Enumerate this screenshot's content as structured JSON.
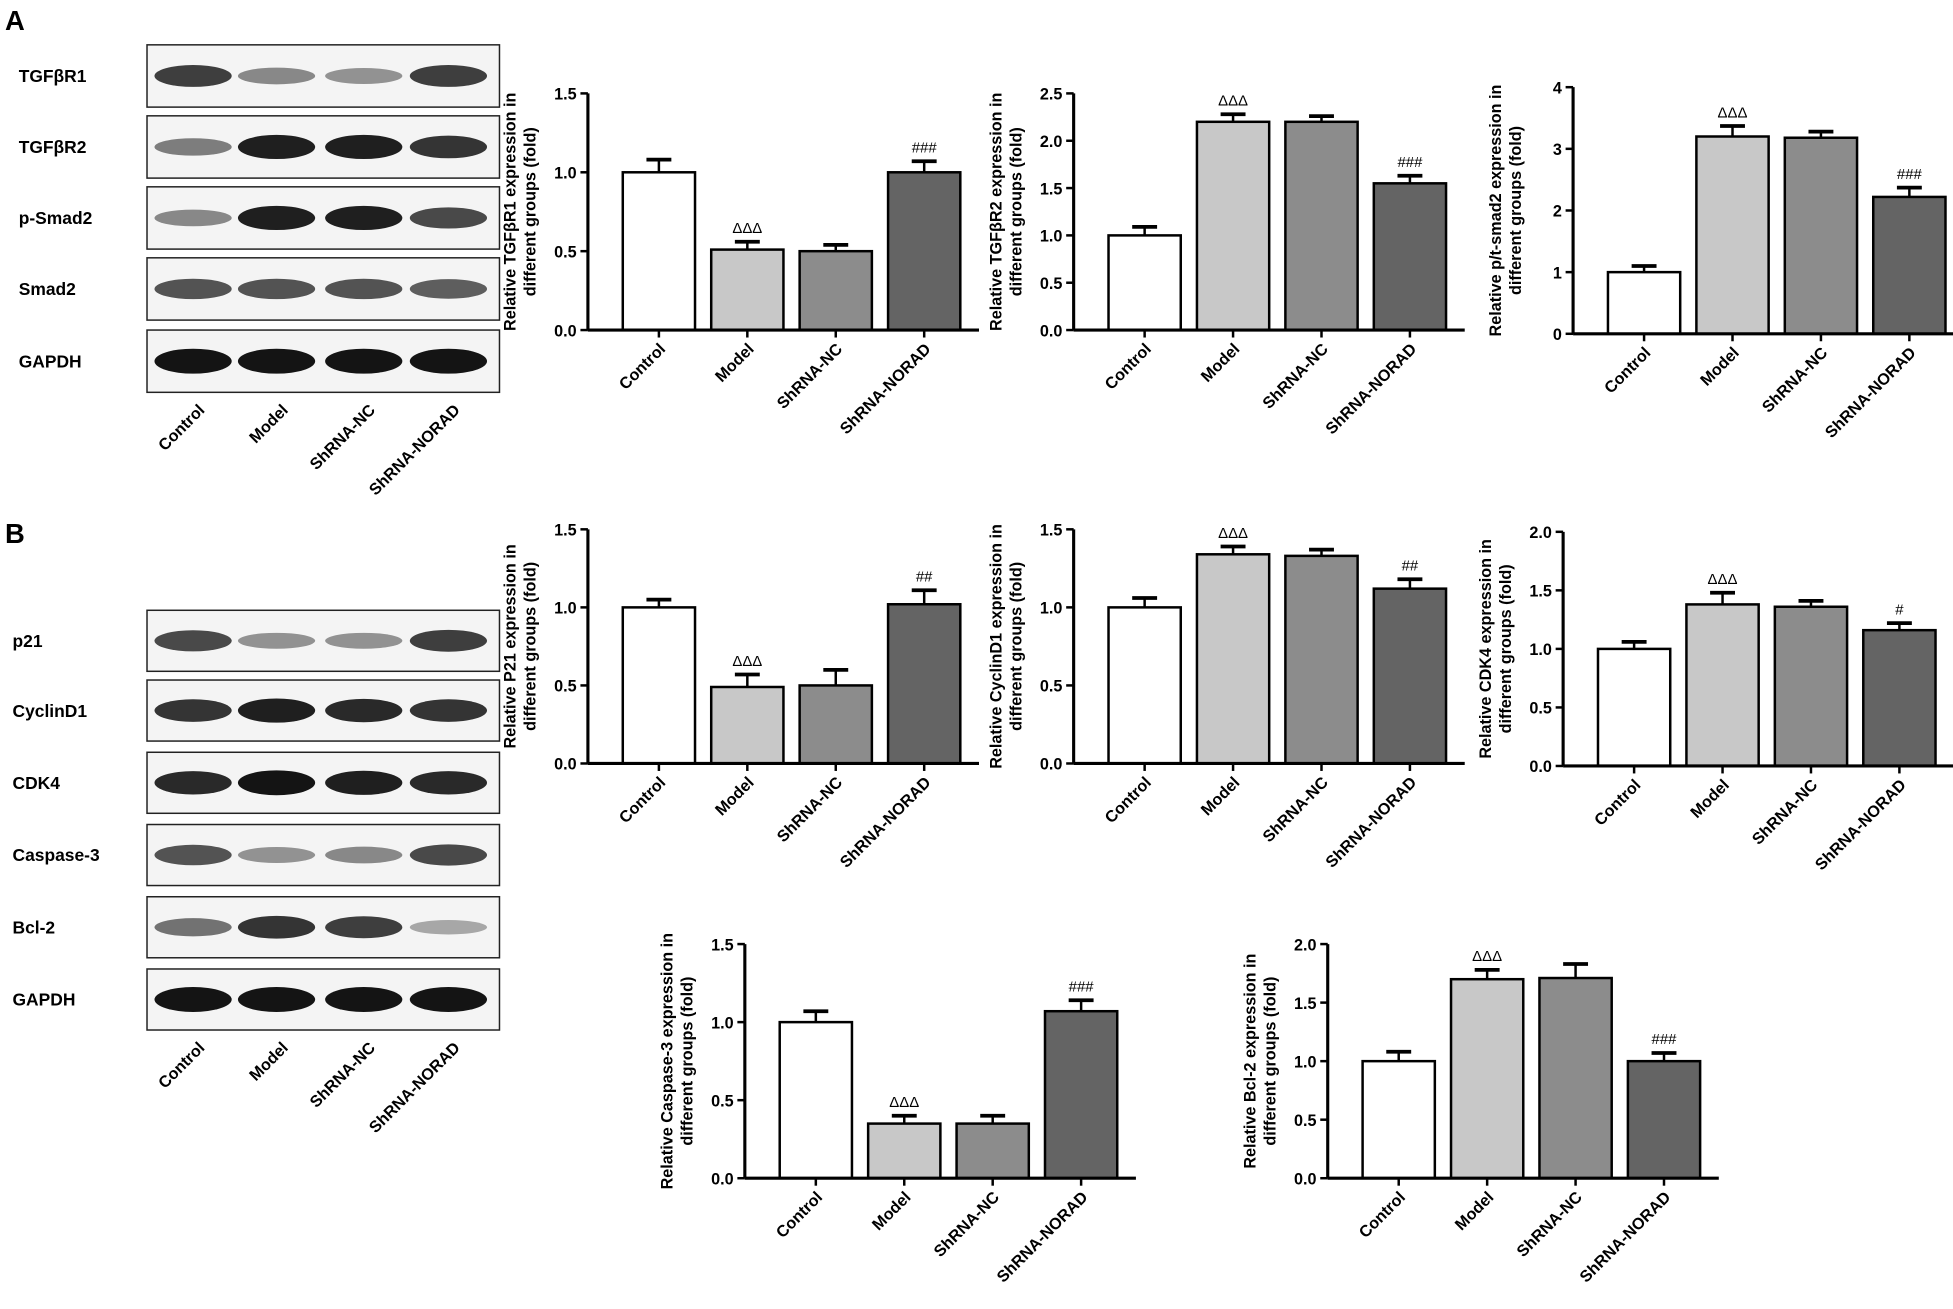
{
  "panels": {
    "a": "A",
    "b": "B"
  },
  "groups": [
    "Control",
    "Model",
    "ShRNA-NC",
    "ShRNA-NORAD"
  ],
  "bar_colors": [
    "#ffffff",
    "#c8c8c8",
    "#8c8c8c",
    "#646464"
  ],
  "blots": [
    {
      "panel": "A",
      "rows": [
        {
          "label": "TGFβR1",
          "intensity": [
            0.8,
            0.45,
            0.4,
            0.8
          ]
        },
        {
          "label": "TGFβR2",
          "intensity": [
            0.5,
            0.95,
            0.95,
            0.85
          ]
        },
        {
          "label": "p-Smad2",
          "intensity": [
            0.45,
            0.95,
            0.95,
            0.75
          ]
        },
        {
          "label": "Smad2",
          "intensity": [
            0.7,
            0.7,
            0.7,
            0.65
          ]
        },
        {
          "label": "GAPDH",
          "intensity": [
            1,
            1,
            1,
            1
          ]
        }
      ]
    },
    {
      "panel": "B",
      "rows": [
        {
          "label": "p21",
          "intensity": [
            0.75,
            0.4,
            0.4,
            0.8
          ]
        },
        {
          "label": "CyclinD1",
          "intensity": [
            0.85,
            0.95,
            0.9,
            0.85
          ]
        },
        {
          "label": "CDK4",
          "intensity": [
            0.9,
            1,
            0.95,
            0.9
          ]
        },
        {
          "label": "Caspase-3",
          "intensity": [
            0.7,
            0.4,
            0.45,
            0.75
          ]
        },
        {
          "label": "Bcl-2",
          "intensity": [
            0.55,
            0.85,
            0.8,
            0.3
          ]
        },
        {
          "label": "GAPDH",
          "intensity": [
            1,
            1,
            1,
            1
          ]
        }
      ]
    }
  ],
  "chart_data": [
    {
      "type": "bar",
      "ylabel": [
        "Relative TGFβR1 expression in",
        "different groups (fold)"
      ],
      "categories": [
        "Control",
        "Model",
        "ShRNA-NC",
        "ShRNA-NORAD"
      ],
      "values": [
        1.0,
        0.51,
        0.5,
        1.0
      ],
      "errors": [
        0.08,
        0.05,
        0.04,
        0.07
      ],
      "annotations": [
        "",
        "ΔΔΔ",
        "",
        "###"
      ],
      "ylim": [
        0,
        1.5
      ],
      "ticks": [
        "0.0",
        "0.5",
        "1.0",
        "1.5"
      ]
    },
    {
      "type": "bar",
      "ylabel": [
        "Relative TGFβR2 expression in",
        "different groups (fold)"
      ],
      "categories": [
        "Control",
        "Model",
        "ShRNA-NC",
        "ShRNA-NORAD"
      ],
      "values": [
        1.0,
        2.2,
        2.2,
        1.55
      ],
      "errors": [
        0.09,
        0.08,
        0.06,
        0.08
      ],
      "annotations": [
        "",
        "ΔΔΔ",
        "",
        "###"
      ],
      "ylim": [
        0,
        2.5
      ],
      "ticks": [
        "0.0",
        "0.5",
        "1.0",
        "1.5",
        "2.0",
        "2.5"
      ]
    },
    {
      "type": "bar",
      "ylabel": [
        "Relative p/t-smad2 expression in",
        "different groups (fold)"
      ],
      "categories": [
        "Control",
        "Model",
        "ShRNA-NC",
        "ShRNA-NORAD"
      ],
      "values": [
        1.0,
        3.2,
        3.18,
        2.22
      ],
      "errors": [
        0.1,
        0.17,
        0.1,
        0.15
      ],
      "annotations": [
        "",
        "ΔΔΔ",
        "",
        "###"
      ],
      "ylim": [
        0,
        4
      ],
      "ticks": [
        "0",
        "1",
        "2",
        "3",
        "4"
      ]
    },
    {
      "type": "bar",
      "ylabel": [
        "Relative P21 expression in",
        "different groups (fold)"
      ],
      "categories": [
        "Control",
        "Model",
        "ShRNA-NC",
        "ShRNA-NORAD"
      ],
      "values": [
        1.0,
        0.49,
        0.5,
        1.02
      ],
      "errors": [
        0.05,
        0.08,
        0.1,
        0.09
      ],
      "annotations": [
        "",
        "ΔΔΔ",
        "",
        "##"
      ],
      "ylim": [
        0,
        1.5
      ],
      "ticks": [
        "0.0",
        "0.5",
        "1.0",
        "1.5"
      ]
    },
    {
      "type": "bar",
      "ylabel": [
        "Relative CyclinD1 expression in",
        "different groups (fold)"
      ],
      "categories": [
        "Control",
        "Model",
        "ShRNA-NC",
        "ShRNA-NORAD"
      ],
      "values": [
        1.0,
        1.34,
        1.33,
        1.12
      ],
      "errors": [
        0.06,
        0.05,
        0.04,
        0.06
      ],
      "annotations": [
        "",
        "ΔΔΔ",
        "",
        "##"
      ],
      "ylim": [
        0,
        1.5
      ],
      "ticks": [
        "0.0",
        "0.5",
        "1.0",
        "1.5"
      ]
    },
    {
      "type": "bar",
      "ylabel": [
        "Relative CDK4 expression in",
        "different groups (fold)"
      ],
      "categories": [
        "Control",
        "Model",
        "ShRNA-NC",
        "ShRNA-NORAD"
      ],
      "values": [
        1.0,
        1.38,
        1.36,
        1.16
      ],
      "errors": [
        0.06,
        0.1,
        0.05,
        0.06
      ],
      "annotations": [
        "",
        "ΔΔΔ",
        "",
        "#"
      ],
      "ylim": [
        0,
        2.0
      ],
      "ticks": [
        "0.0",
        "0.5",
        "1.0",
        "1.5",
        "2.0"
      ]
    },
    {
      "type": "bar",
      "ylabel": [
        "Relative Caspase-3 expression in",
        "different groups (fold)"
      ],
      "categories": [
        "Control",
        "Model",
        "ShRNA-NC",
        "ShRNA-NORAD"
      ],
      "values": [
        1.0,
        0.35,
        0.35,
        1.07
      ],
      "errors": [
        0.07,
        0.05,
        0.05,
        0.07
      ],
      "annotations": [
        "",
        "ΔΔΔ",
        "",
        "###"
      ],
      "ylim": [
        0,
        1.5
      ],
      "ticks": [
        "0.0",
        "0.5",
        "1.0",
        "1.5"
      ]
    },
    {
      "type": "bar",
      "ylabel": [
        "Relative Bcl-2 expression in",
        "different groups (fold)"
      ],
      "categories": [
        "Control",
        "Model",
        "ShRNA-NC",
        "ShRNA-NORAD"
      ],
      "values": [
        1.0,
        1.7,
        1.71,
        1.0
      ],
      "errors": [
        0.08,
        0.08,
        0.12,
        0.07
      ],
      "annotations": [
        "",
        "ΔΔΔ",
        "",
        "###"
      ],
      "ylim": [
        0,
        2.0
      ],
      "ticks": [
        "0.0",
        "0.5",
        "1.0",
        "1.5",
        "2.0"
      ]
    }
  ]
}
